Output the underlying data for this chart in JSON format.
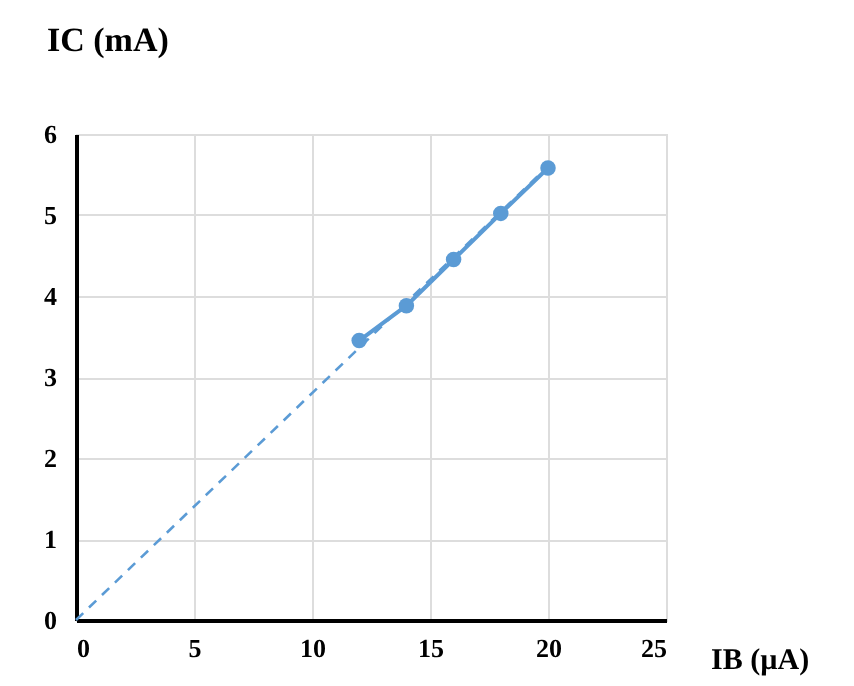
{
  "chart_data": {
    "type": "line",
    "xlabel": "IB (µA)",
    "ylabel": "IC (mA)",
    "xlim": [
      0,
      25
    ],
    "xticks": [
      0,
      5,
      10,
      15,
      20,
      25
    ],
    "ylim": [
      0,
      6
    ],
    "yticks": [
      0,
      1,
      2,
      3,
      4,
      5,
      6
    ],
    "grid": true,
    "series": [
      {
        "color": "#5b9bd5",
        "x": [
          12,
          14,
          16,
          18,
          20
        ],
        "values": [
          3.45,
          3.88,
          4.45,
          5.02,
          5.58
        ],
        "marker": "circle",
        "line_style": "solid"
      },
      {
        "color": "#5b9bd5",
        "x": [
          0,
          20
        ],
        "values": [
          0,
          5.6
        ],
        "marker": "none",
        "line_style": "dashed"
      }
    ]
  }
}
